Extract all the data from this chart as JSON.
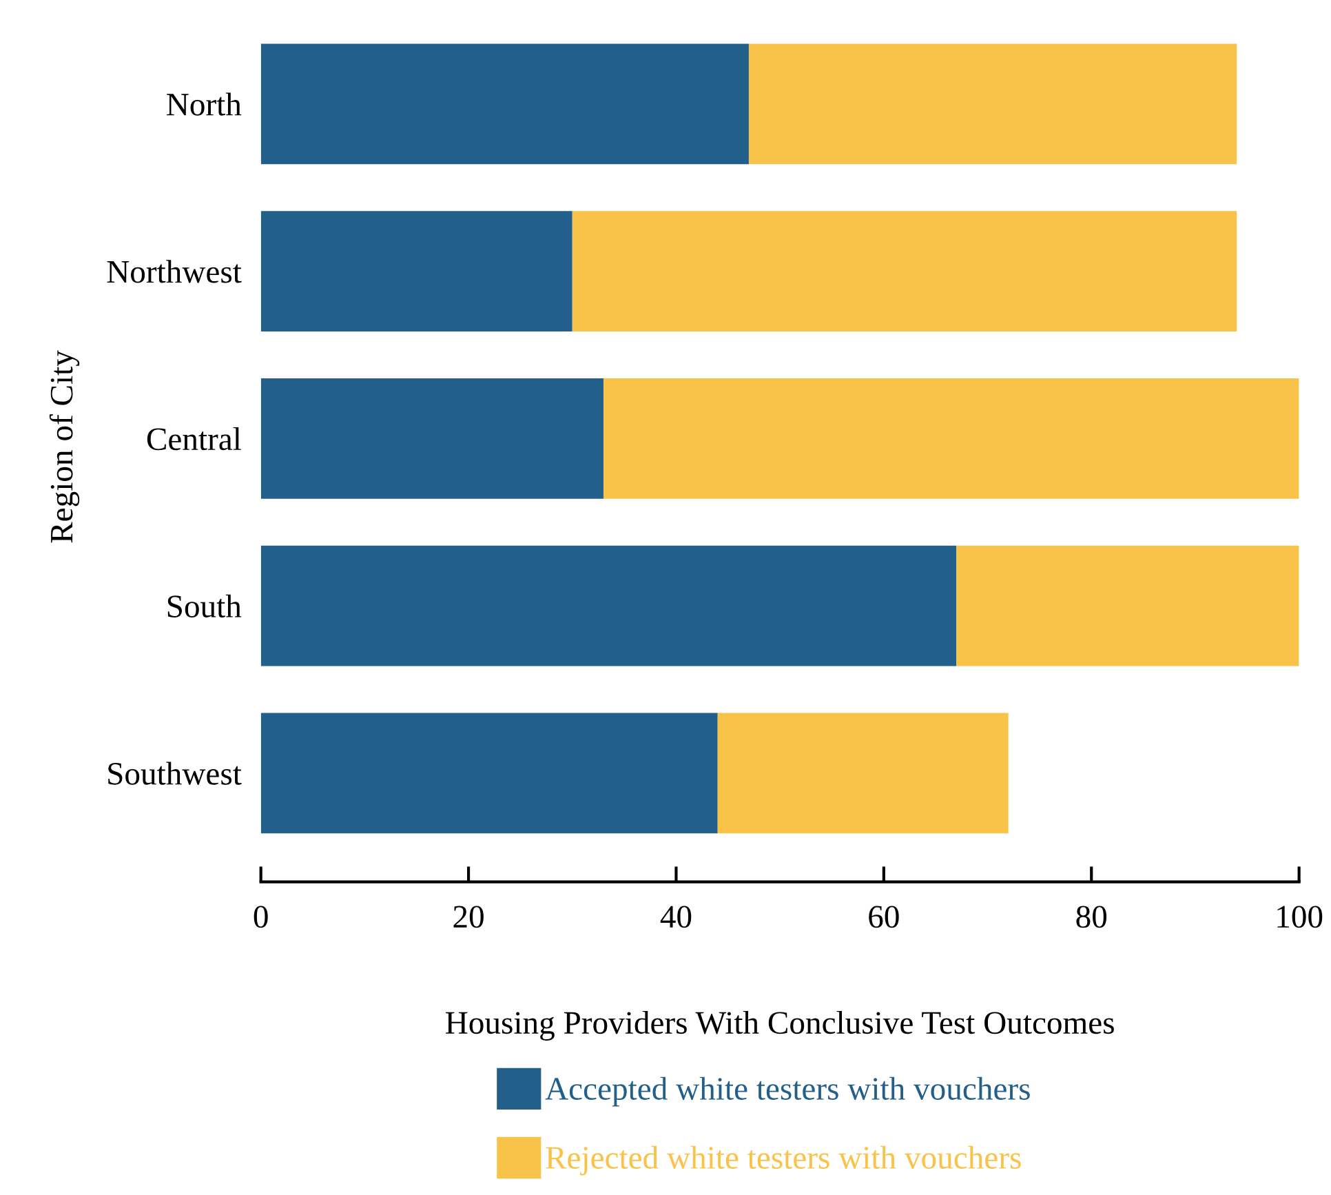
{
  "chart_data": {
    "type": "bar",
    "orientation": "horizontal",
    "stacked": true,
    "categories": [
      "North",
      "Northwest",
      "Central",
      "South",
      "Southwest"
    ],
    "series": [
      {
        "name": "Accepted white testers with vouchers",
        "color": "#235f8b",
        "values": [
          47,
          30,
          33,
          67,
          44
        ]
      },
      {
        "name": "Rejected white testers with vouchers",
        "color": "#f9c349",
        "values": [
          47,
          64,
          67,
          33,
          28
        ]
      }
    ],
    "xlabel": "Housing Providers With Conclusive Test Outcomes",
    "ylabel": "Region of City",
    "xlim": [
      0,
      100
    ],
    "xticks": [
      0,
      20,
      40,
      60,
      80,
      100
    ],
    "grid": false,
    "legend": "bottom"
  }
}
